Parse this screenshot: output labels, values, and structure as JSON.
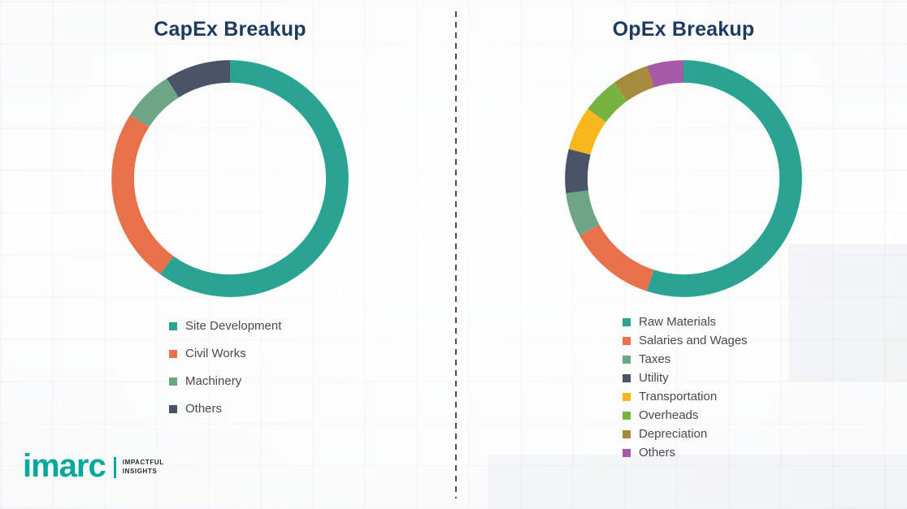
{
  "theme": {
    "title_color": "#1E3A5F",
    "legend_text_color": "#4A4A4A",
    "brand_teal": "#00A99D",
    "divider_color": "#4E4E4E"
  },
  "chart_data": [
    {
      "type": "pie",
      "donut": true,
      "title": "CapEx Breakup",
      "labels": [
        "Site Development",
        "Civil Works",
        "Machinery",
        "Others"
      ],
      "values": [
        60,
        24,
        7,
        9
      ],
      "colors": [
        "#2BA393",
        "#E8714C",
        "#6CA687",
        "#4B5368"
      ],
      "legend_position": "bottom",
      "start_angle": "top",
      "direction": "clockwise"
    },
    {
      "type": "pie",
      "donut": true,
      "title": "OpEx Breakup",
      "labels": [
        "Raw Materials",
        "Salaries and Wages",
        "Taxes",
        "Utility",
        "Transportation",
        "Overheads",
        "Depreciation",
        "Others"
      ],
      "values": [
        55,
        12,
        6,
        6,
        6,
        5,
        5,
        5
      ],
      "colors": [
        "#2BA393",
        "#E8714C",
        "#6CA687",
        "#4B5368",
        "#F7B71D",
        "#76B33F",
        "#A68B3C",
        "#A55AA5"
      ],
      "legend_position": "bottom",
      "start_angle": "top",
      "direction": "clockwise"
    }
  ],
  "logo": {
    "text": "imarc",
    "tagline_line1": "IMPACTFUL",
    "tagline_line2": "INSIGHTS"
  }
}
